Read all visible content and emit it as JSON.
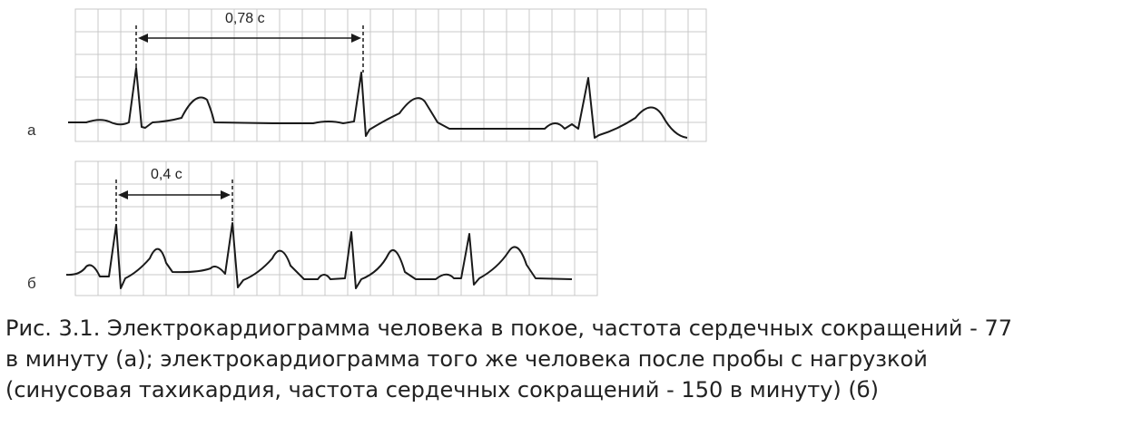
{
  "figure": {
    "panel_a": {
      "label": "а",
      "interval_label": "0,78 с"
    },
    "panel_b": {
      "label": "б",
      "interval_label": "0,4 с"
    }
  },
  "caption": {
    "line1": "Рис. 3.1. Электрокардиограмма человека в покое, частота сердечных сокращений - 77",
    "line2": "в минуту (а); электрокардиограмма того же человека после пробы с нагрузкой",
    "line3": "(синусовая тахикардия, частота сердечных сокращений - 150 в минуту) (б)"
  },
  "colors": {
    "grid": "#c9c9c9",
    "trace": "#1a1a1a",
    "caption": "#222222"
  }
}
